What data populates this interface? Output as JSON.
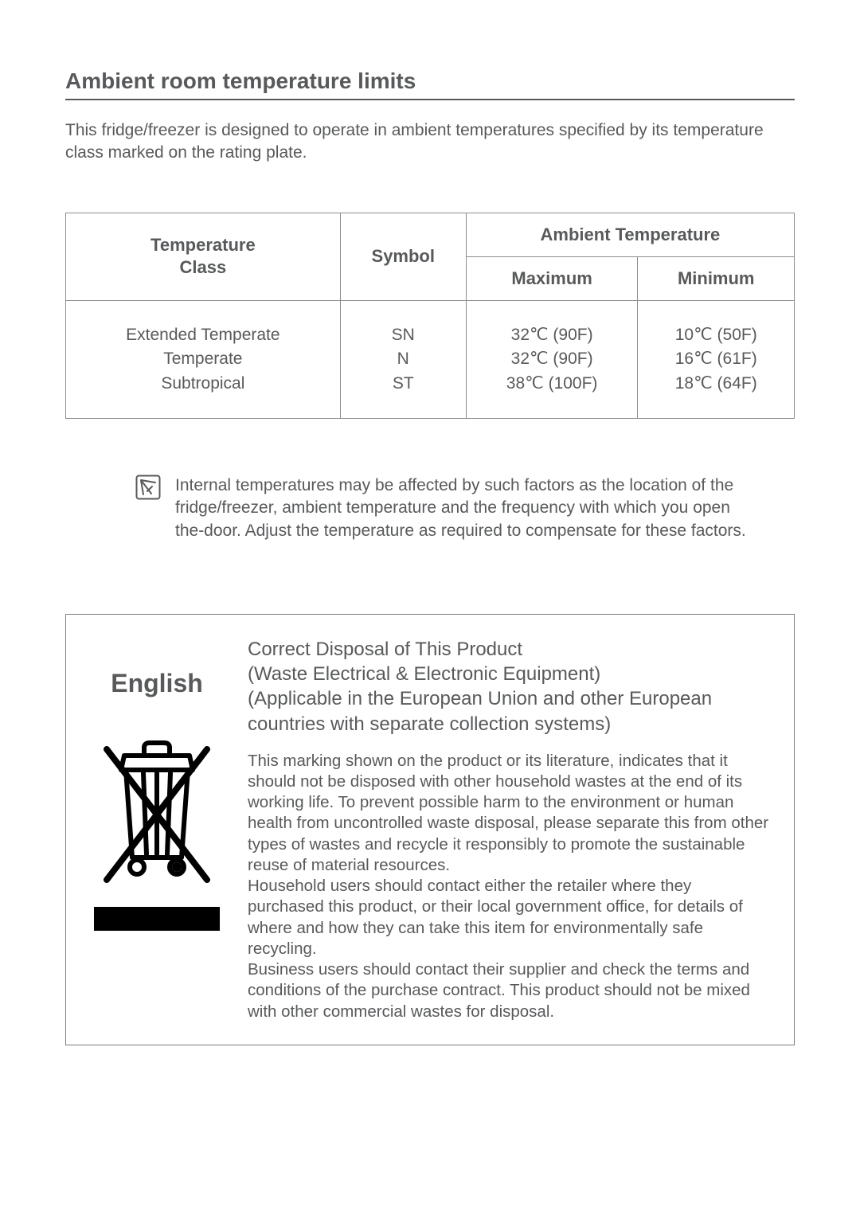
{
  "title": "Ambient room temperature limits",
  "intro": "This fridge/freezer is designed to operate in ambient temperatures specified by its temperature class marked on the rating plate.",
  "table": {
    "headers": {
      "tempClass": "Temperature Class",
      "symbol": "Symbol",
      "ambient": "Ambient Temperature",
      "maximum": "Maximum",
      "minimum": "Minimum"
    },
    "rows": [
      {
        "class": "Extended Temperate",
        "symbol": "SN",
        "max": "32℃ (90F)",
        "min": "10℃ (50F)"
      },
      {
        "class": "Temperate",
        "symbol": "N",
        "max": "32℃ (90F)",
        "min": "16℃ (61F)"
      },
      {
        "class": "Subtropical",
        "symbol": "ST",
        "max": "38℃ (100F)",
        "min": "18℃ (64F)"
      }
    ]
  },
  "note": "Internal temperatures may be affected by such factors as the location of the fridge/freezer, ambient temperature and the frequency with which you open the-door. Adjust the temperature as required to compensate for these factors.",
  "disposal": {
    "language": "English",
    "heading_l1": "Correct Disposal of This Product",
    "heading_l2": "(Waste Electrical & Electronic Equipment)",
    "heading_l3": "(Applicable in the European Union and other European countries with separate collection systems)",
    "body_p1": "This marking shown on the product or its literature, indicates that it should not be disposed with other household wastes at the end of its working life. To prevent possible harm to the environment or human health from uncontrolled waste disposal, please separate this from other types of wastes and recycle it responsibly to promote the sustainable reuse of material resources.",
    "body_p2": "Household users should contact either the retailer where they purchased this product, or their local government office, for details of where and how they can take this item for environmentally safe recycling.",
    "body_p3": "Business users should contact their supplier and check the terms and conditions of the purchase contract. This product should not be mixed with other commercial wastes for disposal."
  },
  "colors": {
    "text": "#58595b",
    "border": "#8a8c8e",
    "background": "#ffffff",
    "icon_stroke": "#000000"
  }
}
